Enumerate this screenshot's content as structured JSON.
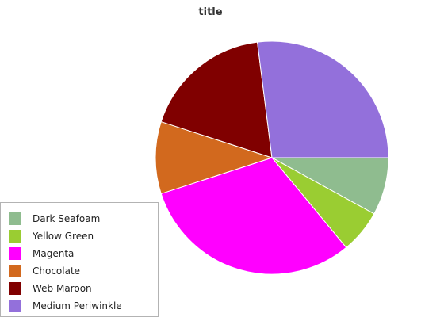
{
  "chart_data": {
    "type": "pie",
    "title": "title",
    "categories": [
      "Dark Seafoam",
      "Yellow Green",
      "Magenta",
      "Chocolate",
      "Web Maroon",
      "Medium Periwinkle"
    ],
    "values": [
      8.0,
      6.0,
      31.0,
      10.0,
      18.0,
      27.0
    ],
    "colors": [
      "#8fbc8f",
      "#9acd32",
      "#ff00ff",
      "#d2691e",
      "#800000",
      "#9370db"
    ],
    "legend_position": "left"
  }
}
